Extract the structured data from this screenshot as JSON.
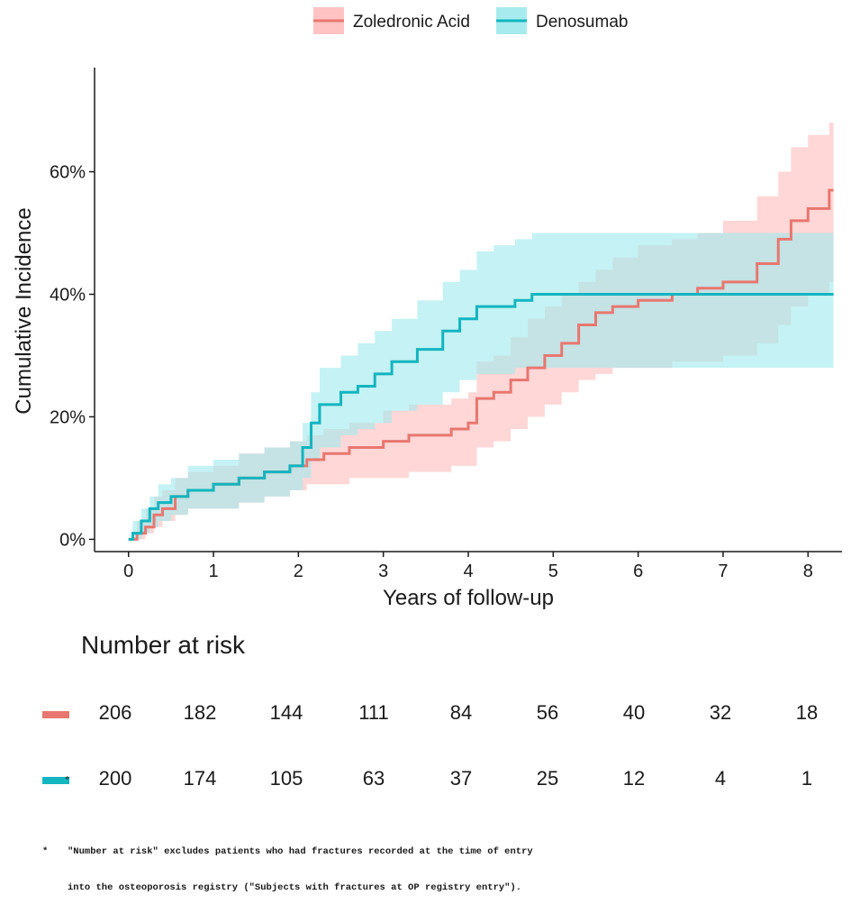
{
  "chart_data": {
    "type": "line",
    "subtype": "cumulative-incidence-step",
    "xlabel": "Years of follow-up",
    "ylabel": "Cumulative Incidence",
    "xlim": [
      -0.4,
      8.4
    ],
    "ylim": [
      -0.02,
      0.77
    ],
    "xticks": [
      0,
      1,
      2,
      3,
      4,
      5,
      6,
      7,
      8
    ],
    "yticks": [
      0,
      0.2,
      0.4,
      0.6
    ],
    "ytick_labels": [
      "0%",
      "20%",
      "40%",
      "60%"
    ],
    "legend_position": "top",
    "series": [
      {
        "name": "Zoledronic Acid",
        "color": "#e8776f",
        "band_color": "#ffbdbd",
        "x": [
          0,
          0.1,
          0.2,
          0.3,
          0.4,
          0.55,
          0.7,
          1.0,
          1.3,
          1.6,
          1.9,
          2.1,
          2.3,
          2.6,
          3.0,
          3.3,
          3.8,
          4.0,
          4.1,
          4.3,
          4.5,
          4.7,
          4.9,
          5.1,
          5.3,
          5.5,
          5.7,
          6.0,
          6.4,
          6.7,
          7.0,
          7.4,
          7.65,
          7.8,
          8.0,
          8.25,
          8.3
        ],
        "y": [
          0,
          0.01,
          0.02,
          0.04,
          0.05,
          0.07,
          0.08,
          0.09,
          0.1,
          0.11,
          0.12,
          0.13,
          0.14,
          0.15,
          0.16,
          0.17,
          0.18,
          0.19,
          0.23,
          0.24,
          0.26,
          0.28,
          0.3,
          0.32,
          0.35,
          0.37,
          0.38,
          0.39,
          0.4,
          0.41,
          0.42,
          0.45,
          0.49,
          0.52,
          0.54,
          0.57,
          0.57
        ],
        "lower": [
          0,
          0,
          0.01,
          0.02,
          0.03,
          0.04,
          0.05,
          0.05,
          0.06,
          0.07,
          0.08,
          0.09,
          0.09,
          0.1,
          0.1,
          0.11,
          0.12,
          0.12,
          0.15,
          0.16,
          0.18,
          0.2,
          0.22,
          0.24,
          0.26,
          0.27,
          0.28,
          0.28,
          0.29,
          0.29,
          0.3,
          0.32,
          0.35,
          0.38,
          0.4,
          0.42,
          0.42
        ],
        "upper": [
          0,
          0.03,
          0.05,
          0.07,
          0.08,
          0.1,
          0.11,
          0.12,
          0.14,
          0.15,
          0.16,
          0.17,
          0.18,
          0.19,
          0.21,
          0.22,
          0.23,
          0.24,
          0.29,
          0.3,
          0.33,
          0.36,
          0.38,
          0.4,
          0.42,
          0.44,
          0.46,
          0.48,
          0.49,
          0.5,
          0.52,
          0.56,
          0.6,
          0.64,
          0.66,
          0.68,
          0.68
        ]
      },
      {
        "name": "Denosumab",
        "color": "#12b5c0",
        "band_color": "#9fe9ec",
        "x": [
          0,
          0.05,
          0.15,
          0.25,
          0.35,
          0.5,
          0.7,
          1.0,
          1.3,
          1.6,
          1.9,
          2.05,
          2.15,
          2.25,
          2.5,
          2.7,
          2.9,
          3.1,
          3.4,
          3.7,
          3.9,
          4.1,
          4.3,
          4.55,
          4.75,
          8.3
        ],
        "y": [
          0,
          0.01,
          0.03,
          0.05,
          0.06,
          0.07,
          0.08,
          0.09,
          0.1,
          0.11,
          0.12,
          0.15,
          0.19,
          0.22,
          0.24,
          0.25,
          0.27,
          0.29,
          0.31,
          0.34,
          0.36,
          0.38,
          0.38,
          0.39,
          0.4,
          0.4
        ],
        "lower": [
          0,
          0,
          0.01,
          0.02,
          0.03,
          0.04,
          0.05,
          0.05,
          0.06,
          0.07,
          0.08,
          0.1,
          0.13,
          0.15,
          0.17,
          0.18,
          0.19,
          0.21,
          0.22,
          0.24,
          0.26,
          0.27,
          0.27,
          0.28,
          0.28,
          0.28
        ],
        "upper": [
          0,
          0.03,
          0.05,
          0.07,
          0.09,
          0.1,
          0.12,
          0.13,
          0.14,
          0.15,
          0.16,
          0.19,
          0.24,
          0.28,
          0.3,
          0.32,
          0.34,
          0.36,
          0.39,
          0.42,
          0.44,
          0.47,
          0.48,
          0.49,
          0.5,
          0.5
        ]
      }
    ]
  },
  "risk_table": {
    "title": "Number at risk",
    "rows": [
      {
        "series": "Zoledronic Acid",
        "color": "#e8776f",
        "marker": "",
        "values": [
          "206",
          "182",
          "144",
          "111",
          "84",
          "56",
          "40",
          "32",
          "18"
        ]
      },
      {
        "series": "Denosumab",
        "color": "#12b5c0",
        "marker": "*",
        "values": [
          "200",
          "174",
          "105",
          "63",
          "37",
          "25",
          "12",
          "4",
          "1"
        ]
      }
    ]
  },
  "footnote": {
    "star": "*",
    "line1": "\"Number at risk\" excludes patients who had fractures recorded at the time of entry",
    "line2": "into the osteoporosis registry (\"Subjects with fractures at OP registry entry\")."
  }
}
